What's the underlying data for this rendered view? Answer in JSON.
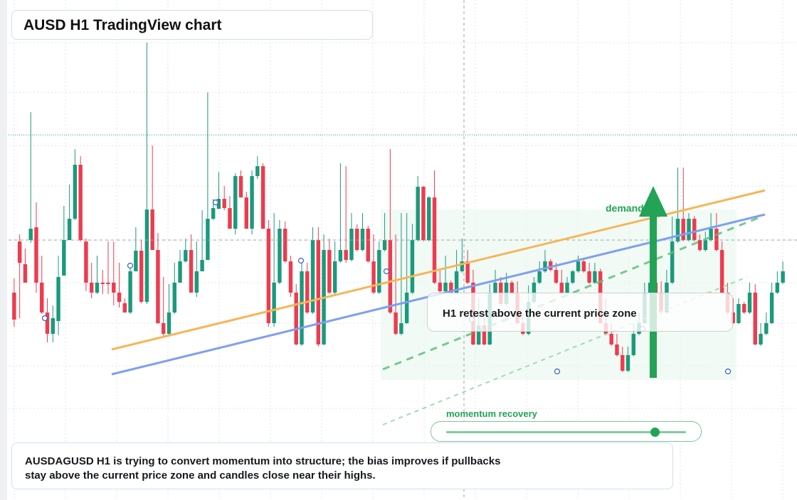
{
  "title": "AUSD H1 TradingView chart",
  "callout": {
    "text": "H1 retest above the current price zone"
  },
  "demand_label": "demand",
  "momentum": {
    "label": "momentum recovery",
    "level": 0.87
  },
  "note": "AUSDAGUSD H1 is trying to convert momentum into structure; the bias improves if pullbacks stay above the current price zone and candles close near their highs.",
  "colors": {
    "bull": "#1a9a7c",
    "bear": "#ee3b4f",
    "accent_green": "#22a356",
    "trend_orange": "#f5b657",
    "trend_blue": "#7f9ff0",
    "grid": "#dfe3e8"
  },
  "chart_data": {
    "type": "candlestick",
    "series": [
      {
        "o": 412,
        "c": 450,
        "h": 460,
        "l": 392
      },
      {
        "o": 340,
        "c": 370,
        "h": 448,
        "l": 330
      },
      {
        "o": 372,
        "c": 398,
        "h": 388,
        "l": 350
      },
      {
        "o": 338,
        "c": 322,
        "h": 342,
        "l": 158
      },
      {
        "o": 320,
        "c": 398,
        "h": 412,
        "l": 285
      },
      {
        "o": 398,
        "c": 440,
        "h": 442,
        "l": 360
      },
      {
        "o": 440,
        "c": 470,
        "h": 482,
        "l": 420
      },
      {
        "o": 470,
        "c": 448,
        "h": 482,
        "l": 430
      },
      {
        "o": 452,
        "c": 390,
        "h": 472,
        "l": 360
      },
      {
        "o": 388,
        "c": 338,
        "h": 360,
        "l": 290
      },
      {
        "o": 338,
        "c": 308,
        "h": 325,
        "l": 260
      },
      {
        "o": 308,
        "c": 232,
        "h": 310,
        "l": 210
      },
      {
        "o": 232,
        "c": 338,
        "h": 340,
        "l": 220
      },
      {
        "o": 340,
        "c": 398,
        "h": 410,
        "l": 336
      },
      {
        "o": 398,
        "c": 412,
        "h": 420,
        "l": 370
      },
      {
        "o": 412,
        "c": 398,
        "h": 414,
        "l": 360
      },
      {
        "o": 398,
        "c": 398,
        "h": 414,
        "l": 380
      },
      {
        "o": 398,
        "c": 398,
        "h": 414,
        "l": 340
      },
      {
        "o": 398,
        "c": 412,
        "h": 430,
        "l": 340
      },
      {
        "o": 412,
        "c": 425,
        "h": 433,
        "l": 370
      },
      {
        "o": 427,
        "c": 440,
        "h": 440,
        "l": 420
      },
      {
        "o": 440,
        "c": 382,
        "h": 442,
        "l": 372
      },
      {
        "o": 382,
        "c": 353,
        "h": 380,
        "l": 320
      },
      {
        "o": 353,
        "c": 425,
        "h": 427,
        "l": 338
      },
      {
        "o": 425,
        "c": 295,
        "h": 428,
        "l": 60
      },
      {
        "o": 295,
        "c": 352,
        "h": 352,
        "l": 205
      },
      {
        "o": 352,
        "c": 455,
        "h": 456,
        "l": 328
      },
      {
        "o": 455,
        "c": 470,
        "h": 474,
        "l": 390
      },
      {
        "o": 470,
        "c": 440,
        "h": 474,
        "l": 400
      },
      {
        "o": 440,
        "c": 398,
        "h": 442,
        "l": 370
      },
      {
        "o": 398,
        "c": 368,
        "h": 376,
        "l": 352
      },
      {
        "o": 368,
        "c": 352,
        "h": 370,
        "l": 336
      },
      {
        "o": 352,
        "c": 412,
        "h": 412,
        "l": 330
      },
      {
        "o": 412,
        "c": 382,
        "h": 418,
        "l": 340
      },
      {
        "o": 382,
        "c": 366,
        "h": 372,
        "l": 296
      },
      {
        "o": 366,
        "c": 308,
        "h": 318,
        "l": 130
      },
      {
        "o": 308,
        "c": 293,
        "h": 310,
        "l": 280
      },
      {
        "o": 294,
        "c": 280,
        "h": 292,
        "l": 242
      },
      {
        "o": 280,
        "c": 293,
        "h": 296,
        "l": 262
      },
      {
        "o": 293,
        "c": 322,
        "h": 322,
        "l": 276
      },
      {
        "o": 322,
        "c": 248,
        "h": 330,
        "l": 244
      },
      {
        "o": 248,
        "c": 278,
        "h": 278,
        "l": 240
      },
      {
        "o": 278,
        "c": 322,
        "h": 322,
        "l": 270
      },
      {
        "o": 322,
        "c": 248,
        "h": 330,
        "l": 240
      },
      {
        "o": 248,
        "c": 234,
        "h": 252,
        "l": 220
      },
      {
        "o": 234,
        "c": 322,
        "h": 322,
        "l": 230
      },
      {
        "o": 322,
        "c": 455,
        "h": 460,
        "l": 310
      },
      {
        "o": 455,
        "c": 398,
        "h": 460,
        "l": 300
      },
      {
        "o": 398,
        "c": 322,
        "h": 400,
        "l": 310
      },
      {
        "o": 322,
        "c": 368,
        "h": 370,
        "l": 312
      },
      {
        "o": 368,
        "c": 412,
        "h": 418,
        "l": 360
      },
      {
        "o": 412,
        "c": 485,
        "h": 486,
        "l": 400
      },
      {
        "o": 485,
        "c": 382,
        "h": 487,
        "l": 368
      },
      {
        "o": 382,
        "c": 440,
        "h": 442,
        "l": 370
      },
      {
        "o": 440,
        "c": 338,
        "h": 442,
        "l": 320
      },
      {
        "o": 338,
        "c": 485,
        "h": 488,
        "l": 320
      },
      {
        "o": 485,
        "c": 352,
        "h": 486,
        "l": 330
      },
      {
        "o": 352,
        "c": 412,
        "h": 414,
        "l": 336
      },
      {
        "o": 412,
        "c": 368,
        "h": 414,
        "l": 340
      },
      {
        "o": 368,
        "c": 352,
        "h": 370,
        "l": 230
      },
      {
        "o": 352,
        "c": 366,
        "h": 370,
        "l": 234
      },
      {
        "o": 366,
        "c": 322,
        "h": 368,
        "l": 300
      },
      {
        "o": 322,
        "c": 352,
        "h": 354,
        "l": 316
      },
      {
        "o": 352,
        "c": 322,
        "h": 354,
        "l": 300
      },
      {
        "o": 322,
        "c": 368,
        "h": 370,
        "l": 318
      },
      {
        "o": 368,
        "c": 412,
        "h": 414,
        "l": 330
      },
      {
        "o": 412,
        "c": 352,
        "h": 414,
        "l": 340
      },
      {
        "o": 352,
        "c": 338,
        "h": 354,
        "l": 300
      },
      {
        "o": 338,
        "c": 440,
        "h": 442,
        "l": 210
      },
      {
        "o": 440,
        "c": 470,
        "h": 472,
        "l": 330
      },
      {
        "o": 470,
        "c": 455,
        "h": 472,
        "l": 300
      },
      {
        "o": 455,
        "c": 412,
        "h": 456,
        "l": 300
      },
      {
        "o": 412,
        "c": 338,
        "h": 414,
        "l": 315
      },
      {
        "o": 338,
        "c": 263,
        "h": 340,
        "l": 248
      },
      {
        "o": 263,
        "c": 338,
        "h": 340,
        "l": 262
      },
      {
        "o": 338,
        "c": 278,
        "h": 340,
        "l": 276
      },
      {
        "o": 278,
        "c": 398,
        "h": 400,
        "l": 240
      },
      {
        "o": 398,
        "c": 410,
        "h": 412,
        "l": 380
      },
      {
        "o": 410,
        "c": 398,
        "h": 412,
        "l": 360
      },
      {
        "o": 398,
        "c": 412,
        "h": 414,
        "l": 395
      },
      {
        "o": 412,
        "c": 382,
        "h": 414,
        "l": 352
      },
      {
        "o": 382,
        "c": 368,
        "h": 384,
        "l": 336
      },
      {
        "o": 368,
        "c": 398,
        "h": 400,
        "l": 352
      },
      {
        "o": 398,
        "c": 485,
        "h": 486,
        "l": 380
      },
      {
        "o": 485,
        "c": 458,
        "h": 486,
        "l": 420
      },
      {
        "o": 458,
        "c": 485,
        "h": 486,
        "l": 440
      },
      {
        "o": 485,
        "c": 412,
        "h": 486,
        "l": 400
      },
      {
        "o": 412,
        "c": 398,
        "h": 414,
        "l": 380
      },
      {
        "o": 398,
        "c": 428,
        "h": 430,
        "l": 390
      },
      {
        "o": 428,
        "c": 398,
        "h": 430,
        "l": 384
      },
      {
        "o": 398,
        "c": 412,
        "h": 414,
        "l": 395
      },
      {
        "o": 412,
        "c": 455,
        "h": 456,
        "l": 396
      },
      {
        "o": 455,
        "c": 470,
        "h": 472,
        "l": 440
      },
      {
        "o": 470,
        "c": 425,
        "h": 472,
        "l": 402
      },
      {
        "o": 425,
        "c": 398,
        "h": 428,
        "l": 390
      },
      {
        "o": 398,
        "c": 382,
        "h": 400,
        "l": 368
      },
      {
        "o": 382,
        "c": 368,
        "h": 384,
        "l": 352
      },
      {
        "o": 368,
        "c": 380,
        "h": 382,
        "l": 365
      },
      {
        "o": 380,
        "c": 398,
        "h": 400,
        "l": 370
      },
      {
        "o": 398,
        "c": 412,
        "h": 414,
        "l": 380
      },
      {
        "o": 412,
        "c": 398,
        "h": 414,
        "l": 390
      },
      {
        "o": 398,
        "c": 382,
        "h": 400,
        "l": 380
      },
      {
        "o": 382,
        "c": 368,
        "h": 384,
        "l": 360
      },
      {
        "o": 368,
        "c": 382,
        "h": 384,
        "l": 365
      },
      {
        "o": 382,
        "c": 398,
        "h": 400,
        "l": 370
      },
      {
        "o": 398,
        "c": 382,
        "h": 400,
        "l": 370
      },
      {
        "o": 382,
        "c": 455,
        "h": 456,
        "l": 378
      },
      {
        "o": 455,
        "c": 470,
        "h": 472,
        "l": 420
      },
      {
        "o": 470,
        "c": 485,
        "h": 487,
        "l": 455
      },
      {
        "o": 485,
        "c": 500,
        "h": 502,
        "l": 470
      },
      {
        "o": 500,
        "c": 522,
        "h": 524,
        "l": 488
      },
      {
        "o": 522,
        "c": 500,
        "h": 524,
        "l": 488
      },
      {
        "o": 500,
        "c": 470,
        "h": 502,
        "l": 455
      },
      {
        "o": 470,
        "c": 455,
        "h": 472,
        "l": 440
      },
      {
        "o": 455,
        "c": 412,
        "h": 456,
        "l": 398
      },
      {
        "o": 412,
        "c": 398,
        "h": 414,
        "l": 382
      },
      {
        "o": 398,
        "c": 412,
        "h": 414,
        "l": 395
      },
      {
        "o": 412,
        "c": 440,
        "h": 442,
        "l": 396
      },
      {
        "o": 440,
        "c": 398,
        "h": 442,
        "l": 380
      },
      {
        "o": 398,
        "c": 340,
        "h": 400,
        "l": 305
      },
      {
        "o": 340,
        "c": 308,
        "h": 342,
        "l": 236
      },
      {
        "o": 308,
        "c": 338,
        "h": 340,
        "l": 236
      },
      {
        "o": 338,
        "c": 308,
        "h": 340,
        "l": 300
      },
      {
        "o": 308,
        "c": 338,
        "h": 340,
        "l": 304
      },
      {
        "o": 338,
        "c": 352,
        "h": 354,
        "l": 330
      },
      {
        "o": 352,
        "c": 338,
        "h": 354,
        "l": 326
      },
      {
        "o": 338,
        "c": 322,
        "h": 340,
        "l": 300
      },
      {
        "o": 322,
        "c": 352,
        "h": 354,
        "l": 300
      },
      {
        "o": 352,
        "c": 412,
        "h": 414,
        "l": 340
      },
      {
        "o": 412,
        "c": 440,
        "h": 442,
        "l": 398
      },
      {
        "o": 440,
        "c": 455,
        "h": 456,
        "l": 420
      },
      {
        "o": 455,
        "c": 428,
        "h": 456,
        "l": 420
      },
      {
        "o": 428,
        "c": 440,
        "h": 442,
        "l": 425
      },
      {
        "o": 440,
        "c": 412,
        "h": 442,
        "l": 398
      },
      {
        "o": 412,
        "c": 485,
        "h": 486,
        "l": 400
      },
      {
        "o": 485,
        "c": 470,
        "h": 487,
        "l": 455
      },
      {
        "o": 470,
        "c": 455,
        "h": 472,
        "l": 440
      },
      {
        "o": 455,
        "c": 412,
        "h": 456,
        "l": 398
      },
      {
        "o": 412,
        "c": 398,
        "h": 414,
        "l": 382
      },
      {
        "o": 398,
        "c": 382,
        "h": 400,
        "l": 368
      }
    ]
  }
}
